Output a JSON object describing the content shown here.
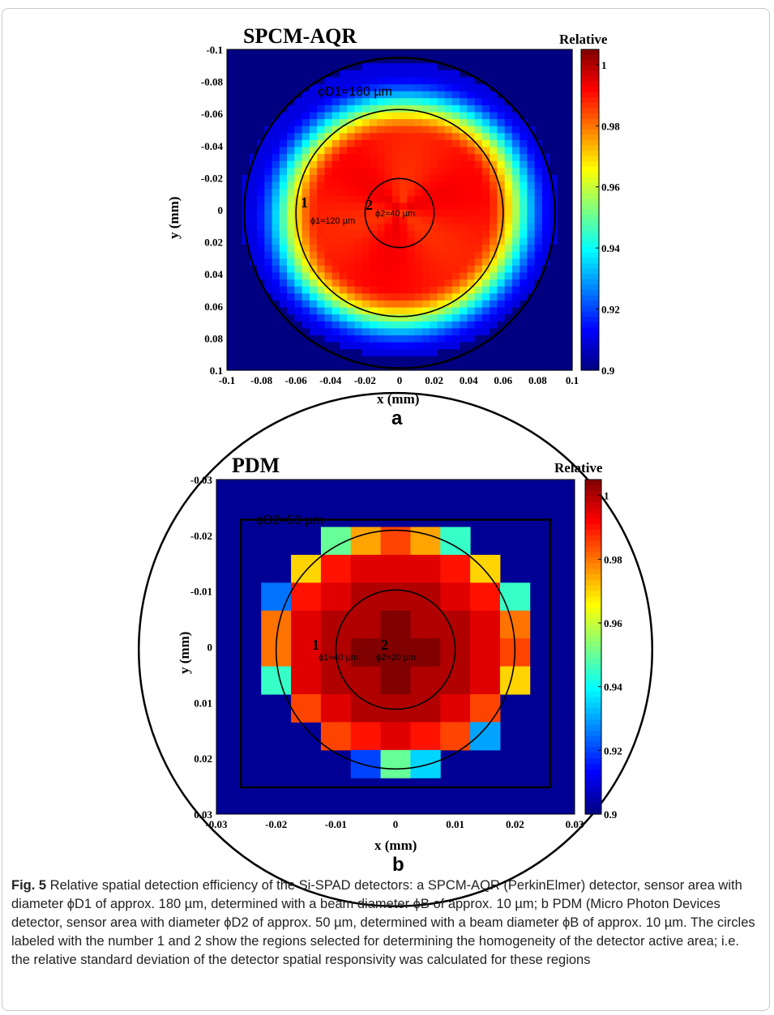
{
  "chart_data": [
    {
      "type": "heatmap",
      "panel": "a",
      "title": "SPCM-AQR",
      "xlabel": "x (mm)",
      "ylabel": "y (mm)",
      "xlim": [
        -0.1,
        0.1
      ],
      "ylim": [
        0.1,
        -0.1
      ],
      "x_ticks": [
        "-0.1",
        "-0.08",
        "-0.06",
        "-0.04",
        "-0.02",
        "0",
        "0.02",
        "0.04",
        "0.06",
        "0.08",
        "0.1"
      ],
      "y_ticks": [
        "-0.1",
        "-0.08",
        "-0.06",
        "-0.04",
        "-0.02",
        "0",
        "0.02",
        "0.04",
        "0.06",
        "0.08",
        "0.1"
      ],
      "colorbar": {
        "title": "Relative",
        "min": 0.9,
        "max": 1.005,
        "ticks": [
          "1",
          "0.98",
          "0.96",
          "0.94",
          "0.92",
          "0.9"
        ]
      },
      "annotations": [
        {
          "label": "ϕD1≈180 µm",
          "circle_diameter_mm": 0.18
        },
        {
          "number": "1",
          "label": "ϕ1≈120 µm",
          "circle_diameter_mm": 0.12
        },
        {
          "number": "2",
          "label": "ϕ2≈40 µm",
          "circle_diameter_mm": 0.04
        }
      ],
      "description_values": {
        "center_value": 0.99,
        "edge_value": 0.96,
        "background_value": 0.9
      }
    },
    {
      "type": "heatmap",
      "panel": "b",
      "title": "PDM",
      "xlabel": "x (mm)",
      "ylabel": "y (mm)",
      "xlim": [
        -0.03,
        0.03
      ],
      "ylim": [
        0.03,
        -0.03
      ],
      "x_ticks": [
        "-0.03",
        "-0.02",
        "-0.01",
        "0",
        "0.01",
        "0.02",
        "0.03"
      ],
      "y_ticks": [
        "-0.03",
        "-0.02",
        "-0.01",
        "0",
        "0.01",
        "0.02",
        "0.03"
      ],
      "colorbar": {
        "title": "Relative",
        "min": 0.9,
        "max": 1.005,
        "ticks": [
          "1",
          "0.98",
          "0.96",
          "0.94",
          "0.92",
          "0.9"
        ]
      },
      "annotations": [
        {
          "label": "ϕD2≈50 µm",
          "circle_diameter_mm": 0.05
        },
        {
          "number": "1",
          "label": "ϕ1≈40 µm",
          "circle_diameter_mm": 0.04
        },
        {
          "number": "2",
          "label": "ϕ2≈20 µm",
          "circle_diameter_mm": 0.02
        }
      ],
      "grid_cells": {
        "x_centers_mm": [
          -0.02,
          -0.015,
          -0.01,
          -0.005,
          0,
          0.005,
          0.01,
          0.015,
          0.02
        ],
        "y_centers_mm": [
          -0.019,
          -0.014,
          -0.009,
          -0.004,
          0.001,
          0.006,
          0.011,
          0.016,
          0.021,
          0.026
        ],
        "values": [
          [
            null,
            null,
            0.95,
            0.975,
            0.985,
            0.975,
            0.945,
            null,
            null
          ],
          [
            null,
            0.97,
            0.99,
            0.995,
            0.995,
            0.995,
            0.99,
            0.97,
            null
          ],
          [
            0.925,
            0.99,
            0.995,
            1.0,
            1.0,
            1.0,
            0.995,
            0.99,
            0.945
          ],
          [
            0.98,
            0.995,
            1.0,
            1.0,
            1.005,
            1.0,
            1.0,
            0.995,
            0.98
          ],
          [
            0.98,
            0.995,
            1.0,
            1.005,
            1.005,
            1.005,
            1.0,
            0.995,
            0.985
          ],
          [
            0.945,
            0.995,
            1.0,
            1.0,
            1.005,
            1.0,
            1.0,
            0.995,
            0.97
          ],
          [
            null,
            0.985,
            0.995,
            1.0,
            1.0,
            1.0,
            0.995,
            0.985,
            null
          ],
          [
            null,
            null,
            0.985,
            0.99,
            0.995,
            0.99,
            0.985,
            0.93,
            null
          ],
          [
            null,
            null,
            null,
            0.92,
            0.95,
            0.935,
            null,
            null,
            null
          ],
          [
            null,
            null,
            null,
            null,
            null,
            null,
            null,
            null,
            null
          ]
        ],
        "background_value": 0.9
      }
    }
  ],
  "labels": {
    "panel_a_letter": "a",
    "panel_b_letter": "b",
    "a_d_label": "ϕD1≈180 µm",
    "a_r1_label": "ϕ1≈120 µm",
    "a_r2_label": "ϕ2≈40 µm",
    "b_d_label": "ϕD2≈50 µm",
    "b_r1_label": "ϕ1≈40 µm",
    "b_r2_label": "ϕ2≈20 µm",
    "num1": "1",
    "num2": "2"
  },
  "caption": {
    "fig": "Fig. 5",
    "text": "  Relative spatial detection efficiency of the Si-SPAD detectors: a SPCM-AQR (PerkinElmer) detector, sensor area with diameter ϕD1 of approx. 180 µm, determined with a beam diameter ϕB of approx. 10 µm; b PDM (Micro Photon Devices detector, sensor area with diameter ϕD2 of approx. 50 µm, determined with a beam diameter ϕB of approx. 10 µm. The circles labeled with the number 1 and 2 show the regions selected for determining the homogeneity of the detector active area; i.e. the relative standard deviation of the detector spatial responsivity was calculated for these regions"
  }
}
